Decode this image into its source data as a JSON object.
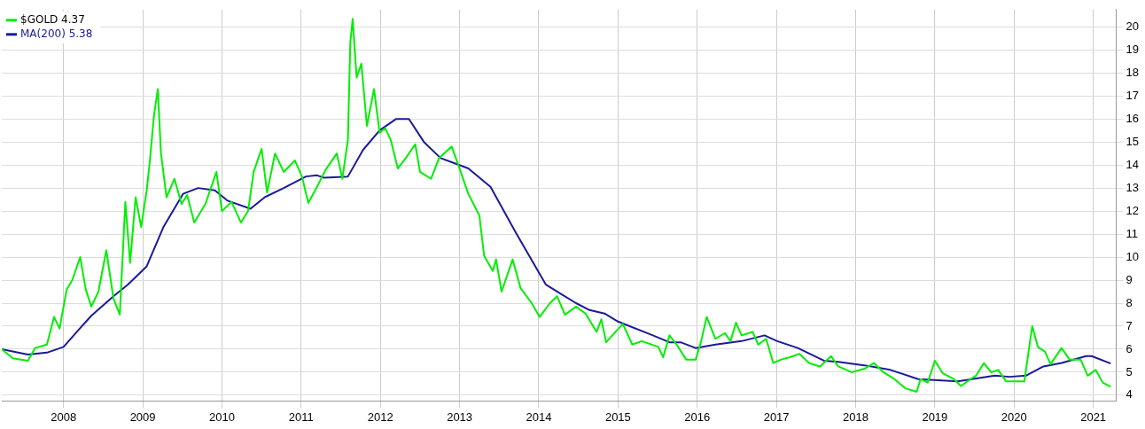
{
  "chart_data": {
    "type": "line",
    "xlim": [
      2007.22,
      2021.29
    ],
    "ylim": [
      3.75,
      20.75
    ],
    "xticks": [
      2008,
      2009,
      2010,
      2011,
      2012,
      2013,
      2014,
      2015,
      2016,
      2017,
      2018,
      2019,
      2020,
      2021
    ],
    "yticks": [
      4,
      5,
      6,
      7,
      8,
      9,
      10,
      11,
      12,
      13,
      14,
      15,
      16,
      17,
      18,
      19,
      20
    ],
    "grid": true,
    "legend": "top left",
    "marker": "none",
    "line_style": "solid",
    "series": [
      {
        "name": "$GOLD 4.37",
        "color": "#00ee00",
        "x": [
          2007.22,
          2007.36,
          2007.55,
          2007.64,
          2007.79,
          2007.88,
          2007.95,
          2008.04,
          2008.11,
          2008.21,
          2008.28,
          2008.35,
          2008.44,
          2008.54,
          2008.63,
          2008.71,
          2008.78,
          2008.84,
          2008.91,
          2008.98,
          2009.05,
          2009.09,
          2009.14,
          2009.19,
          2009.23,
          2009.3,
          2009.4,
          2009.49,
          2009.56,
          2009.65,
          2009.79,
          2009.93,
          2010.0,
          2010.12,
          2010.24,
          2010.33,
          2010.4,
          2010.5,
          2010.57,
          2010.67,
          2010.78,
          2010.92,
          2011.01,
          2011.09,
          2011.2,
          2011.31,
          2011.45,
          2011.52,
          2011.59,
          2011.62,
          2011.65,
          2011.7,
          2011.76,
          2011.83,
          2011.92,
          2011.99,
          2012.06,
          2012.13,
          2012.22,
          2012.32,
          2012.44,
          2012.5,
          2012.64,
          2012.74,
          2012.9,
          2013.0,
          2013.11,
          2013.25,
          2013.31,
          2013.42,
          2013.46,
          2013.53,
          2013.67,
          2013.77,
          2013.91,
          2014.01,
          2014.14,
          2014.23,
          2014.33,
          2014.47,
          2014.59,
          2014.73,
          2014.79,
          2014.85,
          2015.06,
          2015.18,
          2015.3,
          2015.51,
          2015.57,
          2015.65,
          2015.74,
          2015.86,
          2015.98,
          2016.05,
          2016.12,
          2016.23,
          2016.35,
          2016.42,
          2016.49,
          2016.56,
          2016.7,
          2016.77,
          2016.87,
          2016.96,
          2017.06,
          2017.17,
          2017.29,
          2017.41,
          2017.55,
          2017.69,
          2017.78,
          2017.95,
          2018.11,
          2018.23,
          2018.35,
          2018.49,
          2018.63,
          2018.77,
          2018.82,
          2018.91,
          2019.0,
          2019.1,
          2019.24,
          2019.33,
          2019.45,
          2019.52,
          2019.62,
          2019.71,
          2019.8,
          2019.9,
          2020.04,
          2020.13,
          2020.2,
          2020.23,
          2020.3,
          2020.39,
          2020.46,
          2020.6,
          2020.7,
          2020.84,
          2020.93,
          2021.03,
          2021.12,
          2021.22
        ],
        "values": [
          6.0,
          5.6,
          5.5,
          6.05,
          6.2,
          7.4,
          6.9,
          8.6,
          9.0,
          10.0,
          8.6,
          7.85,
          8.5,
          10.3,
          8.2,
          7.5,
          12.4,
          9.75,
          12.6,
          11.3,
          12.9,
          14.2,
          16.1,
          17.3,
          14.5,
          12.6,
          13.4,
          12.3,
          12.7,
          11.5,
          12.3,
          13.7,
          12.0,
          12.4,
          11.5,
          12.0,
          13.7,
          14.7,
          12.8,
          14.5,
          13.7,
          14.2,
          13.5,
          12.35,
          13.05,
          13.8,
          14.5,
          13.4,
          15.1,
          19.3,
          20.35,
          17.8,
          18.4,
          15.7,
          17.3,
          15.4,
          15.6,
          15.1,
          13.85,
          14.3,
          14.9,
          13.7,
          13.4,
          14.3,
          14.8,
          13.85,
          12.75,
          11.8,
          10.05,
          9.4,
          9.9,
          8.5,
          9.9,
          8.65,
          8.0,
          7.4,
          8.0,
          8.3,
          7.5,
          7.85,
          7.55,
          6.75,
          7.3,
          6.3,
          7.1,
          6.2,
          6.35,
          6.1,
          5.65,
          6.6,
          6.2,
          5.55,
          5.55,
          6.35,
          7.4,
          6.45,
          6.7,
          6.35,
          7.15,
          6.6,
          6.75,
          6.2,
          6.45,
          5.4,
          5.55,
          5.65,
          5.8,
          5.4,
          5.25,
          5.7,
          5.25,
          5.0,
          5.15,
          5.4,
          5.0,
          4.7,
          4.3,
          4.15,
          4.7,
          4.55,
          5.5,
          4.95,
          4.7,
          4.4,
          4.7,
          4.85,
          5.4,
          5.0,
          5.1,
          4.6,
          4.6,
          4.6,
          6.3,
          7.0,
          6.1,
          5.9,
          5.35,
          6.05,
          5.55,
          5.55,
          4.85,
          5.1,
          4.55,
          4.37
        ]
      },
      {
        "name": "MA(200) 5.38",
        "color": "#1a1a99",
        "x": [
          2007.22,
          2007.55,
          2007.79,
          2008.0,
          2008.18,
          2008.35,
          2008.63,
          2008.81,
          2009.05,
          2009.26,
          2009.51,
          2009.7,
          2009.91,
          2010.07,
          2010.36,
          2010.54,
          2010.78,
          2011.06,
          2011.2,
          2011.29,
          2011.59,
          2011.78,
          2011.99,
          2012.2,
          2012.36,
          2012.55,
          2012.76,
          2013.11,
          2013.39,
          2013.72,
          2014.09,
          2014.28,
          2014.47,
          2014.64,
          2014.83,
          2015.0,
          2015.44,
          2015.65,
          2015.79,
          2015.98,
          2016.23,
          2016.56,
          2016.85,
          2017.01,
          2017.27,
          2017.6,
          2017.78,
          2018.11,
          2018.44,
          2018.79,
          2019.29,
          2019.52,
          2019.76,
          2019.94,
          2020.15,
          2020.37,
          2020.6,
          2020.91,
          2020.98,
          2021.22
        ],
        "values": [
          6.0,
          5.77,
          5.85,
          6.1,
          6.8,
          7.45,
          8.3,
          8.8,
          9.6,
          11.3,
          12.75,
          13.0,
          12.9,
          12.45,
          12.1,
          12.6,
          13.0,
          13.5,
          13.55,
          13.45,
          13.5,
          14.65,
          15.5,
          16.0,
          16.0,
          15.0,
          14.3,
          13.85,
          13.05,
          11.0,
          8.8,
          8.4,
          8.0,
          7.7,
          7.55,
          7.2,
          6.6,
          6.3,
          6.3,
          6.05,
          6.2,
          6.35,
          6.6,
          6.35,
          6.05,
          5.5,
          5.45,
          5.3,
          5.1,
          4.7,
          4.6,
          4.73,
          4.85,
          4.8,
          4.85,
          5.25,
          5.4,
          5.7,
          5.7,
          5.38
        ]
      }
    ]
  }
}
